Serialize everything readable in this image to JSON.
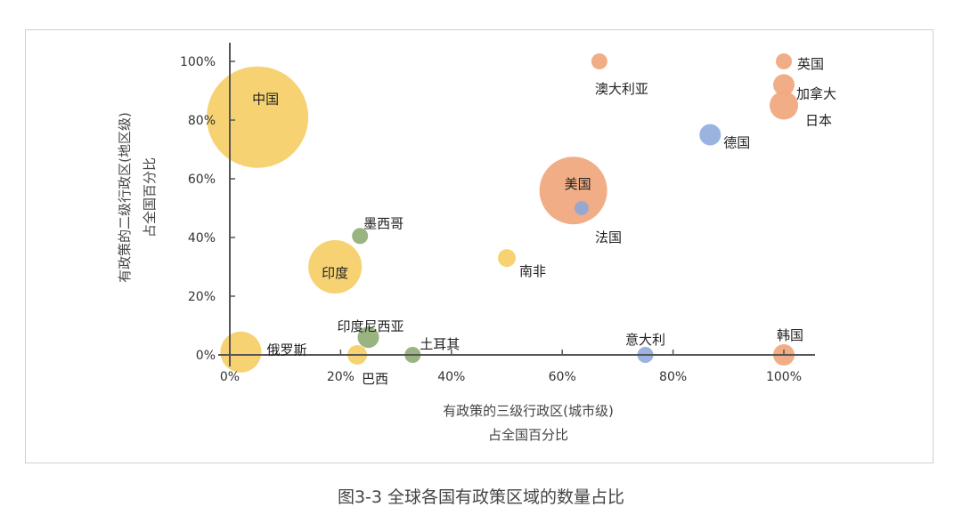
{
  "chart_data": {
    "type": "bubble",
    "xlabel": [
      "有政策的三级行政区(城市级)",
      "占全国百分比"
    ],
    "ylabel": [
      "有政策的二级行政区(地区级)",
      "占全国百分比"
    ],
    "xlim": [
      0,
      100
    ],
    "ylim": [
      0,
      100
    ],
    "xticks": [
      "0%",
      "20%",
      "40%",
      "60%",
      "80%",
      "100%"
    ],
    "yticks": [
      "0%",
      "20%",
      "40%",
      "60%",
      "80%",
      "100%"
    ],
    "grid": false,
    "colors": {
      "yellow": "#f5d06a",
      "orange": "#f0aa80",
      "green": "#93b07a",
      "blue": "#8aa6dc"
    },
    "points": [
      {
        "name": "中国",
        "x": 5,
        "y": 81,
        "size": 57,
        "color": "yellow"
      },
      {
        "name": "印度",
        "x": 19,
        "y": 30,
        "size": 30,
        "color": "yellow"
      },
      {
        "name": "俄罗斯",
        "x": 2,
        "y": 1,
        "size": 23,
        "color": "yellow"
      },
      {
        "name": "巴西",
        "x": 23,
        "y": 0,
        "size": 11,
        "color": "yellow"
      },
      {
        "name": "印度尼西亚",
        "x": 25,
        "y": 6,
        "size": 12,
        "color": "green"
      },
      {
        "name": "墨西哥",
        "x": 23.5,
        "y": 40.5,
        "size": 9,
        "color": "green"
      },
      {
        "name": "土耳其",
        "x": 33,
        "y": 0,
        "size": 9,
        "color": "green"
      },
      {
        "name": "南非",
        "x": 50,
        "y": 33,
        "size": 10,
        "color": "yellow"
      },
      {
        "name": "美国",
        "x": 62,
        "y": 56,
        "size": 38,
        "color": "orange"
      },
      {
        "name": "法国",
        "x": 63.5,
        "y": 50,
        "size": 8,
        "color": "blue"
      },
      {
        "name": "澳大利亚",
        "x": 66.7,
        "y": 100,
        "size": 9,
        "color": "orange"
      },
      {
        "name": "德国",
        "x": 86.7,
        "y": 75,
        "size": 12,
        "color": "blue"
      },
      {
        "name": "意大利",
        "x": 75,
        "y": 0,
        "size": 9,
        "color": "blue"
      },
      {
        "name": "英国",
        "x": 100,
        "y": 100,
        "size": 9,
        "color": "orange"
      },
      {
        "name": "加拿大",
        "x": 100,
        "y": 92,
        "size": 12,
        "color": "orange"
      },
      {
        "name": "日本",
        "x": 100,
        "y": 85,
        "size": 16,
        "color": "orange"
      },
      {
        "name": "韩国",
        "x": 100,
        "y": 0,
        "size": 12,
        "color": "orange"
      }
    ]
  },
  "caption": "图3-3 全球各国有政策区域的数量占比"
}
